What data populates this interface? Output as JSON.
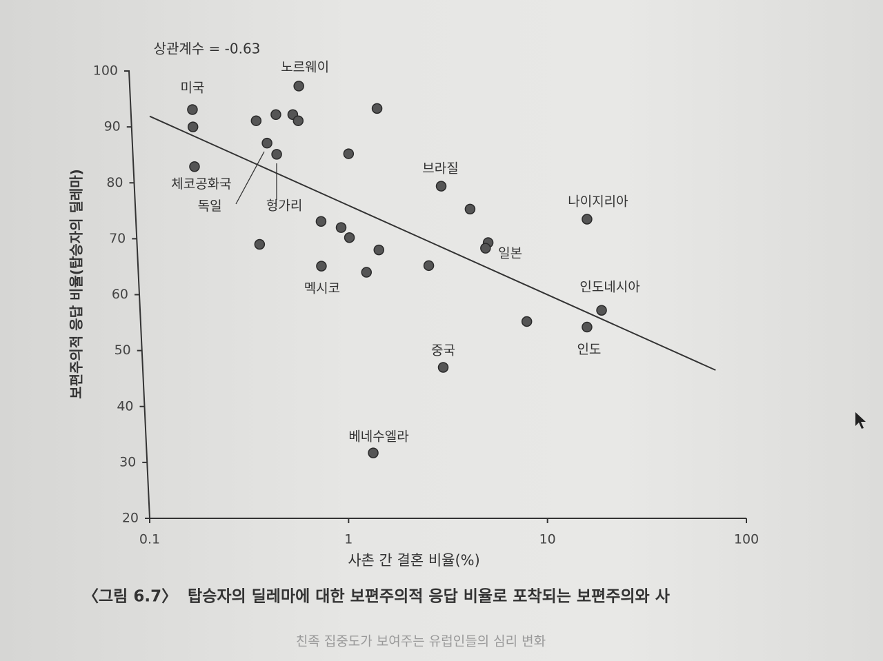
{
  "chart_data": {
    "type": "scatter",
    "annotation": "상관계수 = -0.63",
    "x_label": "사촌 간 결혼 비율(%)",
    "y_label": "보편주의적 응답 비율(탑승자의 딜레마)",
    "log_x": true,
    "xlim": [
      0.1,
      100
    ],
    "xticks": [
      0.1,
      1,
      10,
      100
    ],
    "ylim": [
      20,
      100
    ],
    "yticks": [
      20,
      30,
      40,
      50,
      60,
      70,
      80,
      90,
      100
    ],
    "color": "#555555",
    "x": [
      0.164,
      0.165,
      0.168,
      0.343,
      0.389,
      0.431,
      0.435,
      0.524,
      0.558,
      0.562,
      1.39,
      1.0,
      2.92,
      4.08,
      15.8,
      5.03,
      4.88,
      0.357,
      0.727,
      0.917,
      1.01,
      1.42,
      0.73,
      1.23,
      2.53,
      18.7,
      7.87,
      15.8,
      2.99,
      1.33
    ],
    "values": [
      93.1,
      90,
      82.9,
      91.1,
      87.1,
      92.2,
      85.1,
      92.2,
      91.1,
      97.3,
      93.3,
      85.2,
      79.4,
      75.3,
      73.5,
      69.3,
      68.3,
      69.0,
      73.1,
      72.0,
      70.2,
      68.0,
      65.1,
      64.0,
      65.2,
      57.2,
      55.2,
      54.2,
      47.0,
      31.7
    ],
    "point_labels": [
      "미국",
      null,
      "체코공화국",
      null,
      "독일",
      null,
      "헝가리",
      null,
      null,
      "노르웨이",
      null,
      null,
      "브라질",
      null,
      "나이지리아",
      "일본",
      null,
      null,
      null,
      null,
      null,
      null,
      "멕시코",
      null,
      null,
      "인도네시아",
      null,
      "인도",
      "중국",
      "베네수엘라"
    ],
    "trend_line": {
      "x": [
        0.1,
        70
      ],
      "values": [
        91.9,
        46.5
      ]
    }
  },
  "caption": {
    "number": "〈그림 6.7〉",
    "text": "탑승자의 딜레마에 대한 보편주의적 응답 비율로 포착되는 보편주의와 사"
  },
  "footer": "친족 집중도가 보여주는 유럽인들의 심리 변화"
}
